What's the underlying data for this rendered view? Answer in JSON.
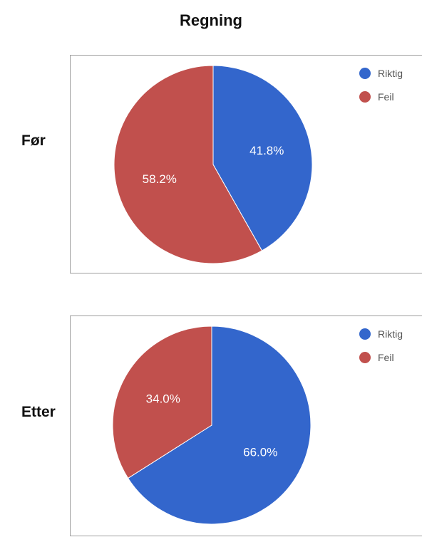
{
  "title": "Regning",
  "charts": [
    {
      "label": "Før"
    },
    {
      "label": "Etter"
    }
  ],
  "chart_data": [
    {
      "type": "pie",
      "categories": [
        "Riktig",
        "Feil"
      ],
      "values": [
        41.8,
        58.2
      ],
      "labels": [
        "41.8%",
        "58.2%"
      ],
      "colors": [
        "#3366cc",
        "#c1504d"
      ],
      "legend": "top-right"
    },
    {
      "type": "pie",
      "categories": [
        "Riktig",
        "Feil"
      ],
      "values": [
        66.0,
        34.0
      ],
      "labels": [
        "66.0%",
        "34.0%"
      ],
      "colors": [
        "#3366cc",
        "#c1504d"
      ],
      "legend": "top-right"
    }
  ]
}
